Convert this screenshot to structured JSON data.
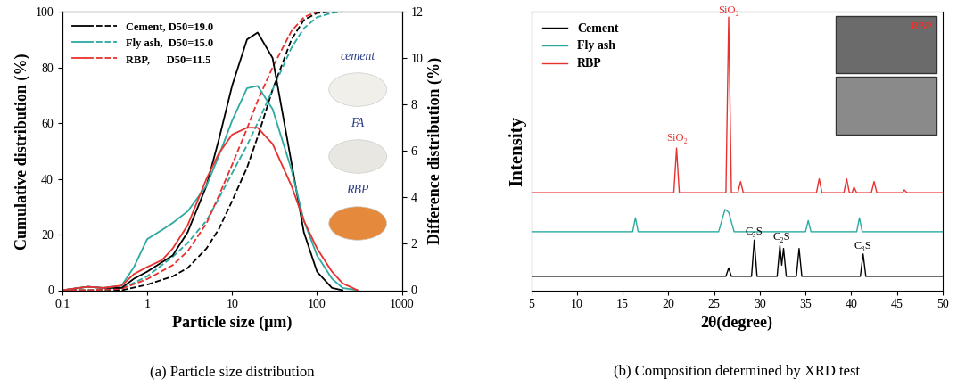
{
  "chart_data": [
    {
      "type": "line",
      "title": "(a) Particle size distribution",
      "xlabel": "Particle size (μm)",
      "ylabel": "Cumulative distribution (%)",
      "y2label": "Difference distribution (%)",
      "log": "x",
      "xlim": [
        0.1,
        1000
      ],
      "xticks": [
        0.1,
        1,
        10,
        100,
        1000
      ],
      "ylim": [
        0,
        100
      ],
      "yticks": [
        0,
        20,
        40,
        60,
        80,
        100
      ],
      "y2lim": [
        0,
        12
      ],
      "y2ticks": [
        0,
        2,
        4,
        6,
        8,
        10,
        12
      ],
      "legend": "upper left",
      "photo_labels": [
        "cement",
        "FA",
        "RBP"
      ],
      "series": [
        {
          "name": "Cement, D50=19.0",
          "color": "#000000",
          "line_style": "solid",
          "axis": "y2",
          "x": [
            0.1,
            0.2,
            0.3,
            0.5,
            0.7,
            1,
            2,
            3,
            5,
            7,
            10,
            15,
            20,
            30,
            50,
            70,
            100,
            150,
            200
          ],
          "values": [
            0,
            0.15,
            0.1,
            0.1,
            0.5,
            0.8,
            1.5,
            2.5,
            4.5,
            6.5,
            8.8,
            10.8,
            11.1,
            10,
            5.5,
            2.5,
            0.8,
            0.1,
            0
          ]
        },
        {
          "name": "Cement, D50=19.0",
          "color": "#000000",
          "line_style": "dashed",
          "axis": "y",
          "x": [
            0.1,
            0.2,
            0.5,
            1,
            2,
            3,
            5,
            7,
            10,
            15,
            20,
            30,
            50,
            70,
            100,
            150,
            1000
          ],
          "values": [
            0,
            0,
            0,
            2,
            5,
            8,
            15,
            22,
            32,
            44,
            55,
            72,
            90,
            97,
            99.5,
            100,
            100
          ]
        },
        {
          "name": "Fly ash,  D50=15.0",
          "color": "#2ca9a1",
          "line_style": "solid",
          "axis": "y2",
          "x": [
            0.1,
            0.2,
            0.3,
            0.5,
            0.7,
            1,
            1.5,
            2,
            3,
            5,
            7,
            10,
            15,
            20,
            30,
            50,
            70,
            100,
            150,
            200,
            300
          ],
          "values": [
            0,
            0.15,
            0.1,
            0.2,
            1,
            2.2,
            2.6,
            2.9,
            3.4,
            4.5,
            5.8,
            7.3,
            8.7,
            8.8,
            7.8,
            5.2,
            3,
            1.5,
            0.5,
            0.1,
            0
          ]
        },
        {
          "name": "Fly ash,  D50=15.0",
          "color": "#2ca9a1",
          "line_style": "dashed",
          "axis": "y",
          "x": [
            0.1,
            0.2,
            0.5,
            1,
            2,
            3,
            5,
            7,
            10,
            15,
            20,
            30,
            50,
            70,
            100,
            150,
            200,
            1000
          ],
          "values": [
            0,
            0,
            0.5,
            5,
            12,
            17,
            25,
            33,
            42,
            52,
            60,
            72,
            87,
            94,
            98,
            99.5,
            100,
            100
          ]
        },
        {
          "name": "RBP,      D50=11.5",
          "color": "#e8312f",
          "line_style": "solid",
          "axis": "y2",
          "x": [
            0.1,
            0.2,
            0.3,
            0.5,
            0.7,
            1,
            1.5,
            2,
            3,
            5,
            7,
            10,
            15,
            20,
            30,
            50,
            70,
            100,
            150,
            200,
            300
          ],
          "values": [
            0,
            0.15,
            0.1,
            0.2,
            0.7,
            1,
            1.3,
            1.8,
            2.8,
            4.8,
            5.9,
            6.7,
            7.0,
            7.0,
            6.3,
            4.5,
            3,
            1.8,
            0.8,
            0.3,
            0
          ]
        },
        {
          "name": "RBP,      D50=11.5",
          "color": "#e8312f",
          "line_style": "dashed",
          "axis": "y",
          "x": [
            0.1,
            0.2,
            0.5,
            1,
            2,
            3,
            5,
            7,
            10,
            15,
            20,
            30,
            50,
            70,
            100,
            1000
          ],
          "values": [
            0,
            0,
            0.5,
            4,
            9,
            14,
            24,
            34,
            45,
            58,
            68,
            80,
            93,
            98,
            100,
            100
          ]
        }
      ]
    },
    {
      "type": "line",
      "title": "(b) Composition determined by XRD test",
      "xlabel": "2θ(degree)",
      "ylabel": "Intensity",
      "xlim": [
        5,
        50
      ],
      "xticks": [
        5,
        10,
        15,
        20,
        25,
        30,
        35,
        40,
        45,
        50
      ],
      "ylim": [
        0,
        10
      ],
      "tick_labels": "x",
      "legend": "upper left",
      "inset_label": "RBP",
      "series": [
        {
          "name": "Cement",
          "color": "#000000",
          "x": [
            5,
            20,
            26.3,
            26.6,
            26.9,
            29.1,
            29.4,
            29.7,
            31.9,
            32.2,
            32.4,
            32.6,
            32.9,
            34.0,
            34.3,
            34.6,
            41.0,
            41.3,
            41.6,
            50
          ],
          "values": [
            0.5,
            0.5,
            0.5,
            0.8,
            0.5,
            0.5,
            1.8,
            0.5,
            0.5,
            1.6,
            0.9,
            1.5,
            0.5,
            0.5,
            1.5,
            0.5,
            0.5,
            1.3,
            0.5,
            0.5
          ]
        },
        {
          "name": "Fly ash",
          "color": "#2ca9a1",
          "x": [
            5,
            16.1,
            16.4,
            16.7,
            25.5,
            26.2,
            26.6,
            27.2,
            35.0,
            35.3,
            35.6,
            40.6,
            40.9,
            41.2,
            50
          ],
          "values": [
            2.1,
            2.1,
            2.6,
            2.1,
            2.1,
            2.9,
            2.8,
            2.1,
            2.1,
            2.5,
            2.1,
            2.1,
            2.6,
            2.1,
            2.1
          ]
        },
        {
          "name": "RBP",
          "color": "#e8312f",
          "x": [
            5,
            20.6,
            20.9,
            21.2,
            26.3,
            26.6,
            26.9,
            27.6,
            27.9,
            28.2,
            36.2,
            36.5,
            36.8,
            39.2,
            39.5,
            39.8,
            40.1,
            40.3,
            40.6,
            42.2,
            42.5,
            42.8,
            45.6,
            45.8,
            46.1,
            50
          ],
          "values": [
            3.5,
            3.5,
            5.1,
            3.5,
            3.5,
            9.8,
            3.5,
            3.5,
            3.9,
            3.5,
            3.5,
            4.0,
            3.5,
            3.5,
            4.0,
            3.5,
            3.5,
            3.7,
            3.5,
            3.5,
            3.9,
            3.5,
            3.5,
            3.6,
            3.5,
            3.5
          ]
        }
      ],
      "annotations": [
        {
          "text": "SiO₂",
          "x": 20.9,
          "y": 5.25,
          "color": "#e8312f"
        },
        {
          "text": "SiO₂",
          "x": 26.6,
          "y": 9.85,
          "color": "#e8312f"
        },
        {
          "text": "C₃S",
          "x": 29.4,
          "y": 1.9,
          "color": "#000000"
        },
        {
          "text": "C₂S",
          "x": 32.4,
          "y": 1.7,
          "color": "#000000"
        },
        {
          "text": "C₃S",
          "x": 41.3,
          "y": 1.4,
          "color": "#000000"
        }
      ]
    }
  ]
}
